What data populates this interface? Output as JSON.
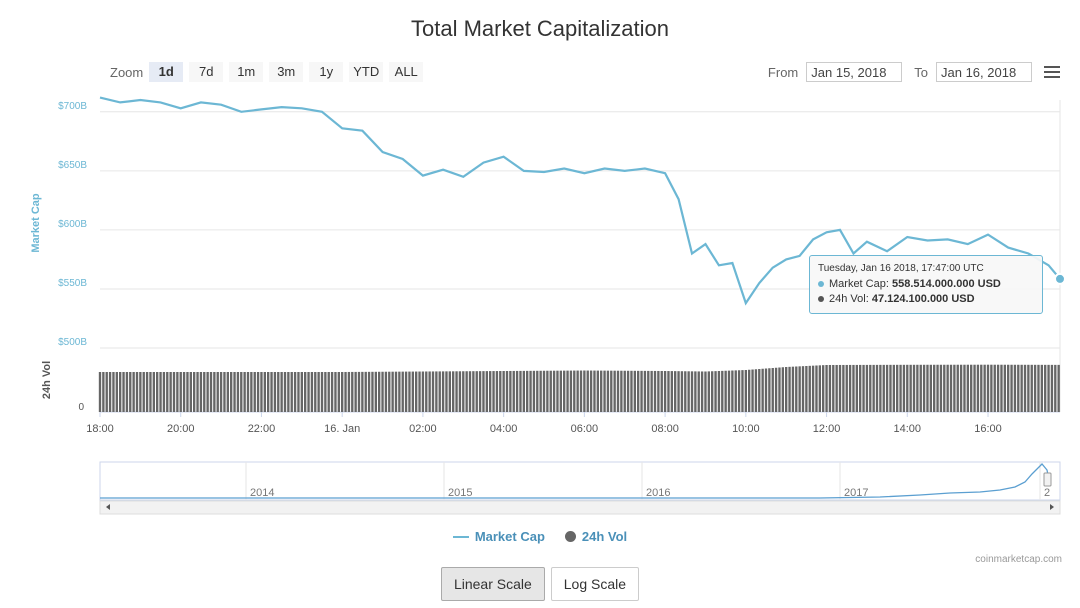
{
  "title": "Total Market Capitalization",
  "zoom": {
    "label": "Zoom",
    "buttons": [
      "1d",
      "7d",
      "1m",
      "3m",
      "1y",
      "YTD",
      "ALL"
    ],
    "active": "1d"
  },
  "range": {
    "from_label": "From",
    "from_value": "Jan 15, 2018",
    "to_label": "To",
    "to_value": "Jan 16, 2018"
  },
  "tooltip": {
    "title": "Tuesday, Jan 16 2018, 17:47:00 UTC",
    "row1_label": "Market Cap:",
    "row1_value": "558.514.000.000 USD",
    "row2_label": "24h Vol:",
    "row2_value": "47.124.100.000 USD"
  },
  "legend": {
    "market_cap": "Market Cap",
    "volume": "24h Vol"
  },
  "credit": "coinmarketcap.com",
  "scale_buttons": {
    "linear": "Linear Scale",
    "log": "Log Scale"
  },
  "colors": {
    "market_cap_line": "#6cb7d4",
    "volume_bars": "#666666",
    "navigator_line": "#5b9fd1"
  },
  "chart_data": {
    "type": "line",
    "x_type": "datetime",
    "x_start": "2018-01-15 18:00",
    "x_end": "2018-01-16 17:47",
    "x_ticks": [
      "18:00",
      "20:00",
      "22:00",
      "16. Jan",
      "02:00",
      "04:00",
      "06:00",
      "08:00",
      "10:00",
      "12:00",
      "14:00",
      "16:00"
    ],
    "y_axis_label": "Market Cap",
    "y_ticks": [
      "$500B",
      "$550B",
      "$600B",
      "$650B",
      "$700B"
    ],
    "ylim": [
      500,
      710
    ],
    "y_unit": "B USD",
    "series": [
      {
        "name": "Market Cap",
        "x": [
          "18:00",
          "18:30",
          "19:00",
          "19:30",
          "20:00",
          "20:30",
          "21:00",
          "21:30",
          "22:00",
          "22:30",
          "23:00",
          "23:30",
          "00:00",
          "00:30",
          "01:00",
          "01:30",
          "02:00",
          "02:30",
          "03:00",
          "03:30",
          "04:00",
          "04:30",
          "05:00",
          "05:30",
          "06:00",
          "06:30",
          "07:00",
          "07:30",
          "08:00",
          "08:20",
          "08:40",
          "09:00",
          "09:20",
          "09:40",
          "10:00",
          "10:20",
          "10:40",
          "11:00",
          "11:20",
          "11:40",
          "12:00",
          "12:20",
          "12:40",
          "13:00",
          "13:30",
          "14:00",
          "14:30",
          "15:00",
          "15:30",
          "16:00",
          "16:30",
          "17:00",
          "17:30",
          "17:47"
        ],
        "y": [
          712,
          708,
          710,
          708,
          703,
          708,
          706,
          700,
          702,
          704,
          703,
          700,
          686,
          684,
          666,
          660,
          646,
          651,
          645,
          657,
          662,
          650,
          649,
          652,
          648,
          652,
          650,
          652,
          648,
          626,
          580,
          588,
          570,
          572,
          538,
          555,
          568,
          575,
          578,
          592,
          598,
          600,
          580,
          590,
          582,
          594,
          591,
          592,
          588,
          596,
          585,
          580,
          570,
          558.5
        ]
      },
      {
        "name": "24h Vol",
        "y_axis_label": "24h Vol",
        "y_ticks": [
          "0"
        ],
        "x": [
          "18:00",
          "20:00",
          "22:00",
          "00:00",
          "02:00",
          "04:00",
          "06:00",
          "08:00",
          "09:00",
          "10:00",
          "11:00",
          "12:00",
          "14:00",
          "16:00",
          "17:47"
        ],
        "y": [
          40,
          40,
          40,
          40,
          40.5,
          41,
          41.5,
          41,
          40.5,
          42,
          45,
          47,
          47.2,
          47.3,
          47.12
        ]
      }
    ],
    "navigator": {
      "year_labels": [
        "2014",
        "2015",
        "2016",
        "2017",
        "2"
      ]
    },
    "grid": true,
    "legend_position": "bottom-center"
  }
}
